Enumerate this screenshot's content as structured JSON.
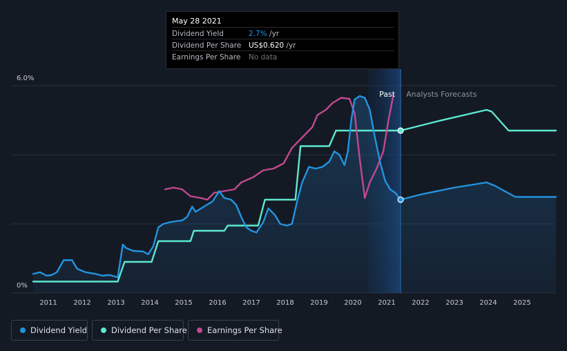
{
  "tooltip": {
    "date": "May 28 2021",
    "rows": [
      {
        "label": "Dividend Yield",
        "value": "2.7%",
        "unit": " /yr",
        "color": "#2394df"
      },
      {
        "label": "Dividend Per Share",
        "value": "US$0.620",
        "unit": " /yr",
        "color": "#ffffff"
      },
      {
        "label": "Earnings Per Share",
        "value": "No data",
        "unit": "",
        "color": "#6f747c"
      }
    ]
  },
  "legend": [
    {
      "label": "Dividend Yield",
      "color": "#2394df"
    },
    {
      "label": "Dividend Per Share",
      "color": "#5ee8d0"
    },
    {
      "label": "Earnings Per Share",
      "color": "#c2498f"
    }
  ],
  "chart_data": {
    "type": "line",
    "y_axis": {
      "ticks": [
        "6.0%",
        "0%"
      ],
      "ylim": [
        0,
        6.0
      ],
      "unit": "%"
    },
    "x_axis": {
      "ticks": [
        "2011",
        "2012",
        "2013",
        "2014",
        "2015",
        "2016",
        "2017",
        "2018",
        "2019",
        "2020",
        "2021",
        "2022",
        "2023",
        "2024",
        "2025"
      ],
      "xlim": [
        2010.55,
        2026.0
      ]
    },
    "region_labels": {
      "past": "Past",
      "forecast": "Analysts Forecasts"
    },
    "divider_x": 2021.41,
    "highlight_start_x": 2020.45,
    "series": [
      {
        "name": "Dividend Yield",
        "color": "#2394df",
        "points": [
          [
            2010.55,
            0.55
          ],
          [
            2010.75,
            0.6
          ],
          [
            2010.95,
            0.5
          ],
          [
            2011.1,
            0.52
          ],
          [
            2011.25,
            0.6
          ],
          [
            2011.45,
            0.95
          ],
          [
            2011.7,
            0.95
          ],
          [
            2011.85,
            0.7
          ],
          [
            2012.1,
            0.6
          ],
          [
            2012.4,
            0.55
          ],
          [
            2012.6,
            0.5
          ],
          [
            2012.8,
            0.52
          ],
          [
            2012.95,
            0.48
          ],
          [
            2013.05,
            0.45
          ],
          [
            2013.2,
            1.4
          ],
          [
            2013.3,
            1.3
          ],
          [
            2013.5,
            1.22
          ],
          [
            2013.8,
            1.2
          ],
          [
            2013.95,
            1.12
          ],
          [
            2014.1,
            1.35
          ],
          [
            2014.25,
            1.9
          ],
          [
            2014.4,
            2.0
          ],
          [
            2014.6,
            2.05
          ],
          [
            2014.8,
            2.08
          ],
          [
            2014.95,
            2.1
          ],
          [
            2015.1,
            2.2
          ],
          [
            2015.25,
            2.5
          ],
          [
            2015.35,
            2.35
          ],
          [
            2015.6,
            2.5
          ],
          [
            2015.85,
            2.65
          ],
          [
            2016.05,
            2.95
          ],
          [
            2016.2,
            2.75
          ],
          [
            2016.4,
            2.7
          ],
          [
            2016.55,
            2.55
          ],
          [
            2016.7,
            2.2
          ],
          [
            2016.85,
            1.9
          ],
          [
            2017.0,
            1.8
          ],
          [
            2017.15,
            1.75
          ],
          [
            2017.35,
            2.05
          ],
          [
            2017.5,
            2.45
          ],
          [
            2017.7,
            2.25
          ],
          [
            2017.85,
            2.0
          ],
          [
            2018.05,
            1.95
          ],
          [
            2018.2,
            2.0
          ],
          [
            2018.35,
            2.65
          ],
          [
            2018.5,
            3.2
          ],
          [
            2018.7,
            3.65
          ],
          [
            2018.9,
            3.6
          ],
          [
            2019.1,
            3.65
          ],
          [
            2019.3,
            3.8
          ],
          [
            2019.45,
            4.1
          ],
          [
            2019.6,
            4.0
          ],
          [
            2019.75,
            3.7
          ],
          [
            2019.85,
            4.1
          ],
          [
            2019.95,
            5.0
          ],
          [
            2020.05,
            5.6
          ],
          [
            2020.2,
            5.7
          ],
          [
            2020.35,
            5.65
          ],
          [
            2020.5,
            5.3
          ],
          [
            2020.65,
            4.5
          ],
          [
            2020.8,
            3.8
          ],
          [
            2020.95,
            3.25
          ],
          [
            2021.1,
            3.0
          ],
          [
            2021.25,
            2.9
          ],
          [
            2021.41,
            2.7
          ],
          [
            2022.0,
            2.85
          ],
          [
            2023.0,
            3.05
          ],
          [
            2023.95,
            3.2
          ],
          [
            2024.2,
            3.1
          ],
          [
            2024.8,
            2.78
          ],
          [
            2026.0,
            2.78
          ]
        ]
      },
      {
        "name": "Dividend Per Share",
        "color": "#5ee8d0",
        "points": [
          [
            2010.55,
            0.33
          ],
          [
            2013.05,
            0.33
          ],
          [
            2013.25,
            0.9
          ],
          [
            2014.05,
            0.9
          ],
          [
            2014.25,
            1.5
          ],
          [
            2015.2,
            1.5
          ],
          [
            2015.3,
            1.8
          ],
          [
            2016.2,
            1.8
          ],
          [
            2016.3,
            1.95
          ],
          [
            2017.2,
            1.95
          ],
          [
            2017.4,
            2.7
          ],
          [
            2018.3,
            2.7
          ],
          [
            2018.45,
            4.25
          ],
          [
            2019.3,
            4.25
          ],
          [
            2019.5,
            4.7
          ],
          [
            2021.41,
            4.7
          ],
          [
            2022.5,
            4.97
          ],
          [
            2023.95,
            5.3
          ],
          [
            2024.1,
            5.25
          ],
          [
            2024.6,
            4.7
          ],
          [
            2026.0,
            4.7
          ]
        ]
      },
      {
        "name": "Earnings Per Share",
        "color": "#c2498f",
        "points": [
          [
            2014.45,
            3.0
          ],
          [
            2014.7,
            3.05
          ],
          [
            2014.95,
            3.0
          ],
          [
            2015.2,
            2.8
          ],
          [
            2015.5,
            2.75
          ],
          [
            2015.7,
            2.7
          ],
          [
            2015.9,
            2.9
          ],
          [
            2016.2,
            2.95
          ],
          [
            2016.5,
            3.0
          ],
          [
            2016.7,
            3.2
          ],
          [
            2017.05,
            3.35
          ],
          [
            2017.35,
            3.55
          ],
          [
            2017.65,
            3.6
          ],
          [
            2017.95,
            3.75
          ],
          [
            2018.2,
            4.2
          ],
          [
            2018.55,
            4.55
          ],
          [
            2018.8,
            4.8
          ],
          [
            2018.95,
            5.15
          ],
          [
            2019.2,
            5.3
          ],
          [
            2019.4,
            5.5
          ],
          [
            2019.65,
            5.65
          ],
          [
            2019.9,
            5.62
          ],
          [
            2020.05,
            5.2
          ],
          [
            2020.2,
            3.9
          ],
          [
            2020.35,
            2.75
          ],
          [
            2020.5,
            3.2
          ],
          [
            2020.7,
            3.6
          ],
          [
            2020.9,
            4.1
          ],
          [
            2021.05,
            5.0
          ],
          [
            2021.2,
            5.75
          ]
        ]
      }
    ],
    "markers": [
      {
        "series": "Dividend Per Share",
        "x": 2021.41,
        "y": 4.7
      },
      {
        "series": "Dividend Yield",
        "x": 2021.41,
        "y": 2.7
      }
    ]
  }
}
